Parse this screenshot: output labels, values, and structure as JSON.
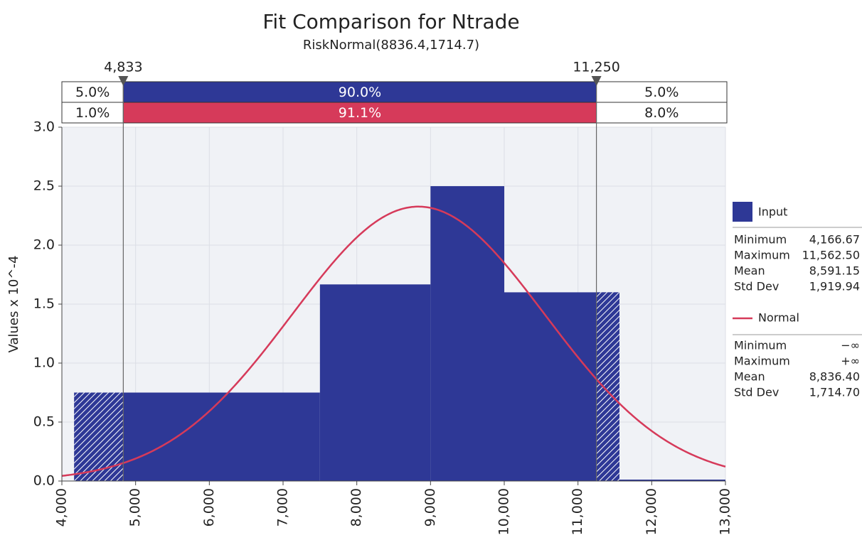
{
  "chart_data": {
    "type": "histogram",
    "title": "Fit Comparison for Ntrade",
    "subtitle": "RiskNormal(8836.4,1714.7)",
    "ylabel": "Values x 10^-4",
    "xlim": [
      4000,
      13000
    ],
    "xticks": [
      {
        "value": 4000,
        "label": "4,000"
      },
      {
        "value": 5000,
        "label": "5,000"
      },
      {
        "value": 6000,
        "label": "6,000"
      },
      {
        "value": 7000,
        "label": "7,000"
      },
      {
        "value": 8000,
        "label": "8,000"
      },
      {
        "value": 9000,
        "label": "9,000"
      },
      {
        "value": 10000,
        "label": "10,000"
      },
      {
        "value": 11000,
        "label": "11,000"
      },
      {
        "value": 12000,
        "label": "12,000"
      },
      {
        "value": 13000,
        "label": "13,000"
      }
    ],
    "ylim": [
      0,
      3
    ],
    "yticks": [
      {
        "value": 0,
        "label": "0.0"
      },
      {
        "value": 0.5,
        "label": "0.5"
      },
      {
        "value": 1,
        "label": "1.0"
      },
      {
        "value": 1.5,
        "label": "1.5"
      },
      {
        "value": 2,
        "label": "2.0"
      },
      {
        "value": 2.5,
        "label": "2.5"
      },
      {
        "value": 3,
        "label": "3.0"
      }
    ],
    "grid": true,
    "bins": [
      4166.67,
      7500,
      9000,
      10000,
      11562.5
    ],
    "values": [
      0.75,
      1.667,
      2.5,
      1.6
    ],
    "delimiters": [
      {
        "value": 4833,
        "label": "4,833"
      },
      {
        "value": 11250,
        "label": "11,250"
      }
    ],
    "series": [
      {
        "name": "Input",
        "color": "#2e3896",
        "probabilities": [
          5,
          90,
          5
        ],
        "probability_labels": [
          "5.0%",
          "90.0%",
          "5.0%"
        ],
        "stats": [
          {
            "label": "Minimum",
            "value": 4166.67,
            "value_label": "4,166.67"
          },
          {
            "label": "Maximum",
            "value": 11562.5,
            "value_label": "11,562.50"
          },
          {
            "label": "Mean",
            "value": 8591.15,
            "value_label": "8,591.15"
          },
          {
            "label": "Std Dev",
            "value": 1919.94,
            "value_label": "1,919.94"
          }
        ]
      },
      {
        "name": "Normal",
        "color": "#d63a5a",
        "probabilities": [
          1,
          91.1,
          8
        ],
        "probability_labels": [
          "1.0%",
          "91.1%",
          "8.0%"
        ],
        "stats": [
          {
            "label": "Minimum",
            "value_label": "−∞"
          },
          {
            "label": "Maximum",
            "value_label": "+∞"
          },
          {
            "label": "Mean",
            "value": 8836.4,
            "value_label": "8,836.40"
          },
          {
            "label": "Std Dev",
            "value": 1714.7,
            "value_label": "1,714.70"
          }
        ]
      }
    ]
  }
}
